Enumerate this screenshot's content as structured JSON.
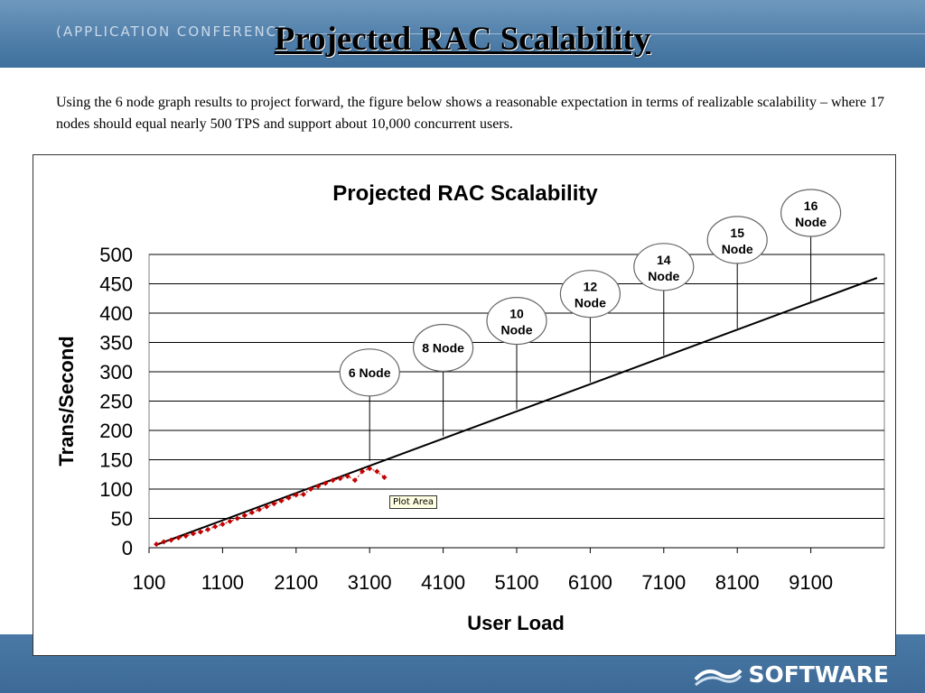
{
  "header": {
    "conference_text": "(APPLICATION CONFERENCE",
    "slide_title": "Projected RAC Scalability"
  },
  "description": "Using the 6 node graph results to project forward, the figure below shows a reasonable expectation in terms of realizable scalability – where 17 nodes should equal nearly 500 TPS and support about 10,000 concurrent users.",
  "tooltip": "Plot Area",
  "logo": {
    "text": "SOFTWARE",
    "icon": "wave-logo-icon"
  },
  "colors": {
    "band": "#4f7ea9",
    "marker": "#c00000",
    "line": "#000000"
  },
  "chart_data": {
    "type": "scatter",
    "title": "Projected RAC Scalability",
    "xlabel": "User Load",
    "ylabel": "Trans/Second",
    "xlim": [
      100,
      10100
    ],
    "ylim": [
      0,
      500
    ],
    "x_ticks": [
      "100",
      "1100",
      "2100",
      "3100",
      "4100",
      "5100",
      "6100",
      "7100",
      "8100",
      "9100"
    ],
    "y_ticks": [
      "0",
      "50",
      "100",
      "150",
      "200",
      "250",
      "300",
      "350",
      "400",
      "450",
      "500"
    ],
    "grid": true,
    "series": [
      {
        "type": "scatter",
        "points": [
          [
            200,
            6
          ],
          [
            300,
            10
          ],
          [
            400,
            13
          ],
          [
            500,
            17
          ],
          [
            600,
            20
          ],
          [
            700,
            24
          ],
          [
            800,
            27
          ],
          [
            900,
            31
          ],
          [
            1000,
            36
          ],
          [
            1100,
            40
          ],
          [
            1200,
            45
          ],
          [
            1300,
            50
          ],
          [
            1400,
            55
          ],
          [
            1500,
            60
          ],
          [
            1600,
            65
          ],
          [
            1700,
            70
          ],
          [
            1800,
            75
          ],
          [
            1900,
            80
          ],
          [
            2000,
            85
          ],
          [
            2100,
            90
          ],
          [
            2200,
            91
          ],
          [
            2300,
            100
          ],
          [
            2400,
            105
          ],
          [
            2500,
            110
          ],
          [
            2600,
            115
          ],
          [
            2700,
            118
          ],
          [
            2800,
            122
          ],
          [
            2900,
            115
          ],
          [
            3000,
            130
          ],
          [
            3100,
            135
          ],
          [
            3200,
            130
          ],
          [
            3300,
            120
          ]
        ]
      },
      {
        "type": "line",
        "points": [
          [
            200,
            5
          ],
          [
            10000,
            460
          ]
        ]
      }
    ],
    "annotations": [
      {
        "label": "6 Node",
        "x": 3100,
        "y": 148
      },
      {
        "label": "8 Node",
        "x": 4100,
        "y": 190
      },
      {
        "label": "10 Node",
        "x": 5100,
        "y": 236
      },
      {
        "label": "12 Node",
        "x": 6100,
        "y": 282
      },
      {
        "label": "14 Node",
        "x": 7100,
        "y": 328
      },
      {
        "label": "15 Node",
        "x": 8100,
        "y": 374
      },
      {
        "label": "16 Node",
        "x": 9100,
        "y": 420
      }
    ]
  }
}
